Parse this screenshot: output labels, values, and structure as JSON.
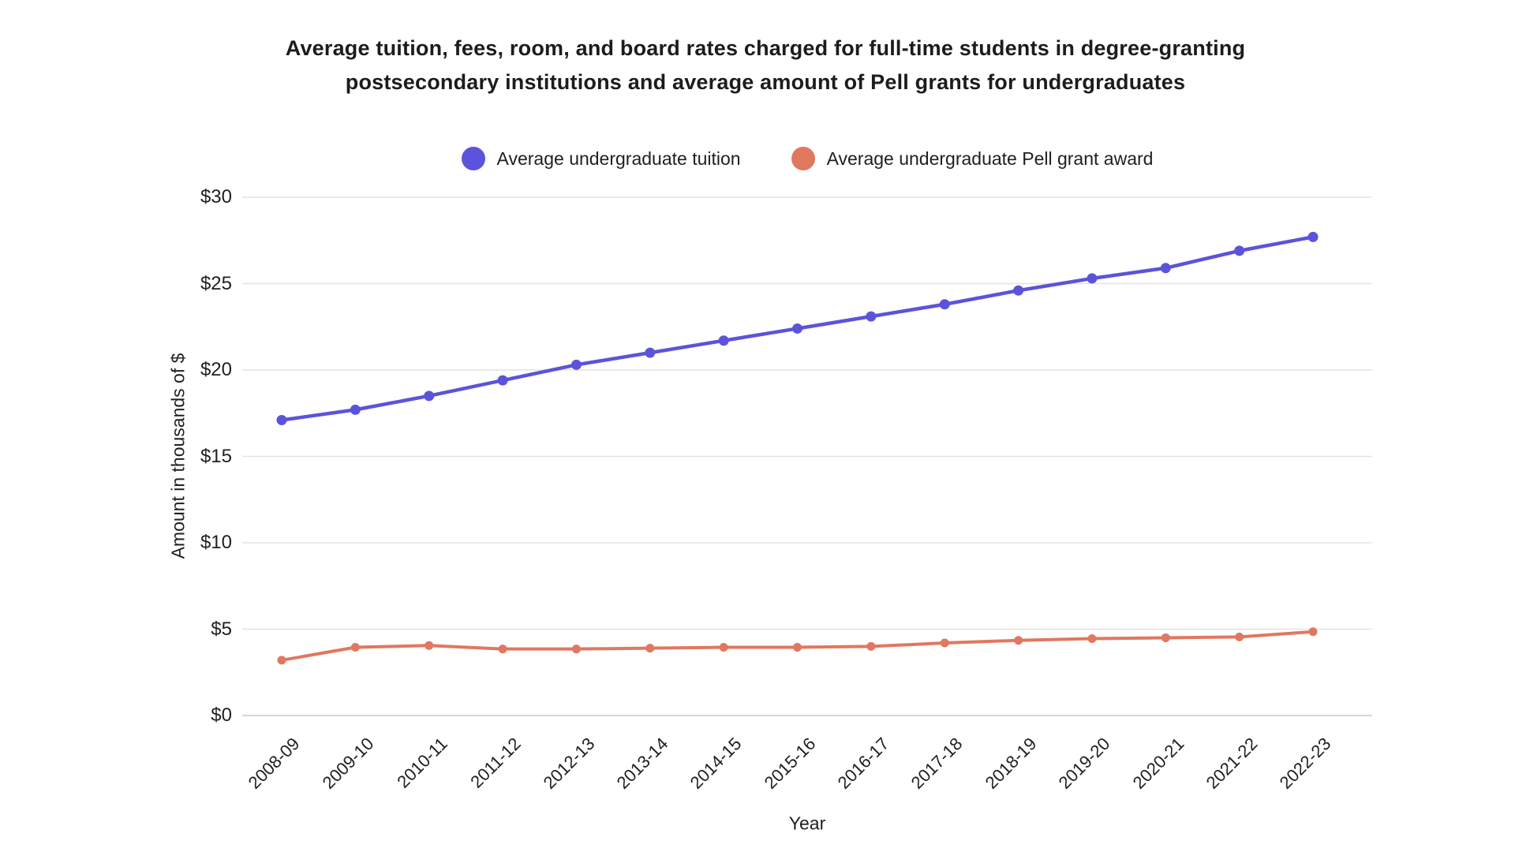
{
  "title": {
    "line1": "Average tuition, fees, room, and board rates charged for full-time students in degree-granting",
    "line2": "postsecondary institutions and average amount of Pell grants for undergraduates"
  },
  "chart_data": {
    "type": "line",
    "title": "Average tuition, fees, room, and board rates charged for full-time students in degree-granting postsecondary institutions and average amount of Pell grants for undergraduates",
    "xlabel": "Year",
    "ylabel": "Amount in thousands of $",
    "categories": [
      "2008-09",
      "2009-10",
      "2010-11",
      "2011-12",
      "2012-13",
      "2013-14",
      "2014-15",
      "2015-16",
      "2016-17",
      "2017-18",
      "2018-19",
      "2019-20",
      "2020-21",
      "2021-22",
      "2022-23"
    ],
    "series": [
      {
        "name": "Average undergraduate tuition",
        "color": "#5b54da",
        "values": [
          17.1,
          17.7,
          18.5,
          19.4,
          20.3,
          21.0,
          21.7,
          22.4,
          23.1,
          23.8,
          24.6,
          25.3,
          25.9,
          26.9,
          27.7
        ]
      },
      {
        "name": "Average undergraduate Pell grant award",
        "color": "#e0785f",
        "values": [
          3.2,
          3.95,
          4.05,
          3.85,
          3.85,
          3.9,
          3.95,
          3.95,
          4.0,
          4.2,
          4.35,
          4.45,
          4.5,
          4.55,
          4.85
        ]
      }
    ],
    "y_ticks": [
      0,
      5,
      10,
      15,
      20,
      25,
      30
    ],
    "y_tick_labels": [
      "$0",
      "$5",
      "$10",
      "$15",
      "$20",
      "$25",
      "$30"
    ],
    "ylim": [
      0,
      30
    ],
    "grid": "horizontal",
    "grid_color": "#e3e3e3",
    "axis_line_color": "#cccccc",
    "legend_position": "top-center"
  }
}
